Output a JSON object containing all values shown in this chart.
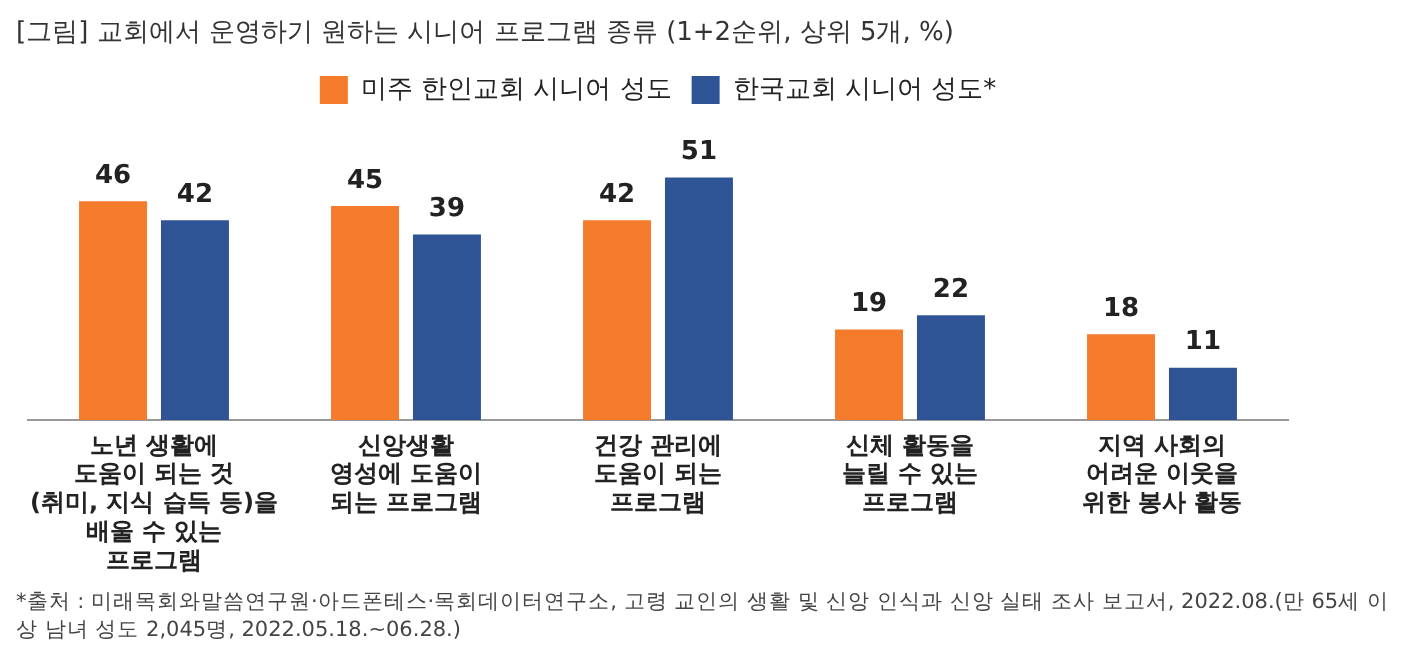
{
  "chart_data": {
    "type": "bar",
    "title": "[그림] 교회에서 운영하기 원하는 시니어 프로그램 종류 (1+2순위, 상위 5개, %)",
    "categories": [
      "노년 생활에\n도움이 되는 것\n(취미, 지식 습득 등)을\n배울 수 있는\n프로그램",
      "신앙생활\n영성에 도움이\n되는 프로그램",
      "건강 관리에\n도움이 되는\n프로그램",
      "신체 활동을\n늘릴 수 있는\n프로그램",
      "지역 사회의\n어려운 이웃을\n위한 봉사 활동"
    ],
    "series": [
      {
        "name": "미주 한인교회 시니어 성도",
        "color": "#f47a2c",
        "values": [
          46,
          45,
          42,
          19,
          18
        ]
      },
      {
        "name": "한국교회 시니어 성도*",
        "color": "#2f5496",
        "values": [
          42,
          39,
          51,
          22,
          11
        ]
      }
    ],
    "data_labels": true,
    "legend": "top",
    "grid": false,
    "annotations": [
      "*출처 : 미래목회와말씀연구원·아드폰테스·목회데이터연구소, 고령 교인의 생활 및 신앙 인식과 신앙 실태 조사 보고서, 2022.08.(만 65세 이상 남녀 성도 2,045명, 2022.05.18.~06.28.)"
    ]
  }
}
